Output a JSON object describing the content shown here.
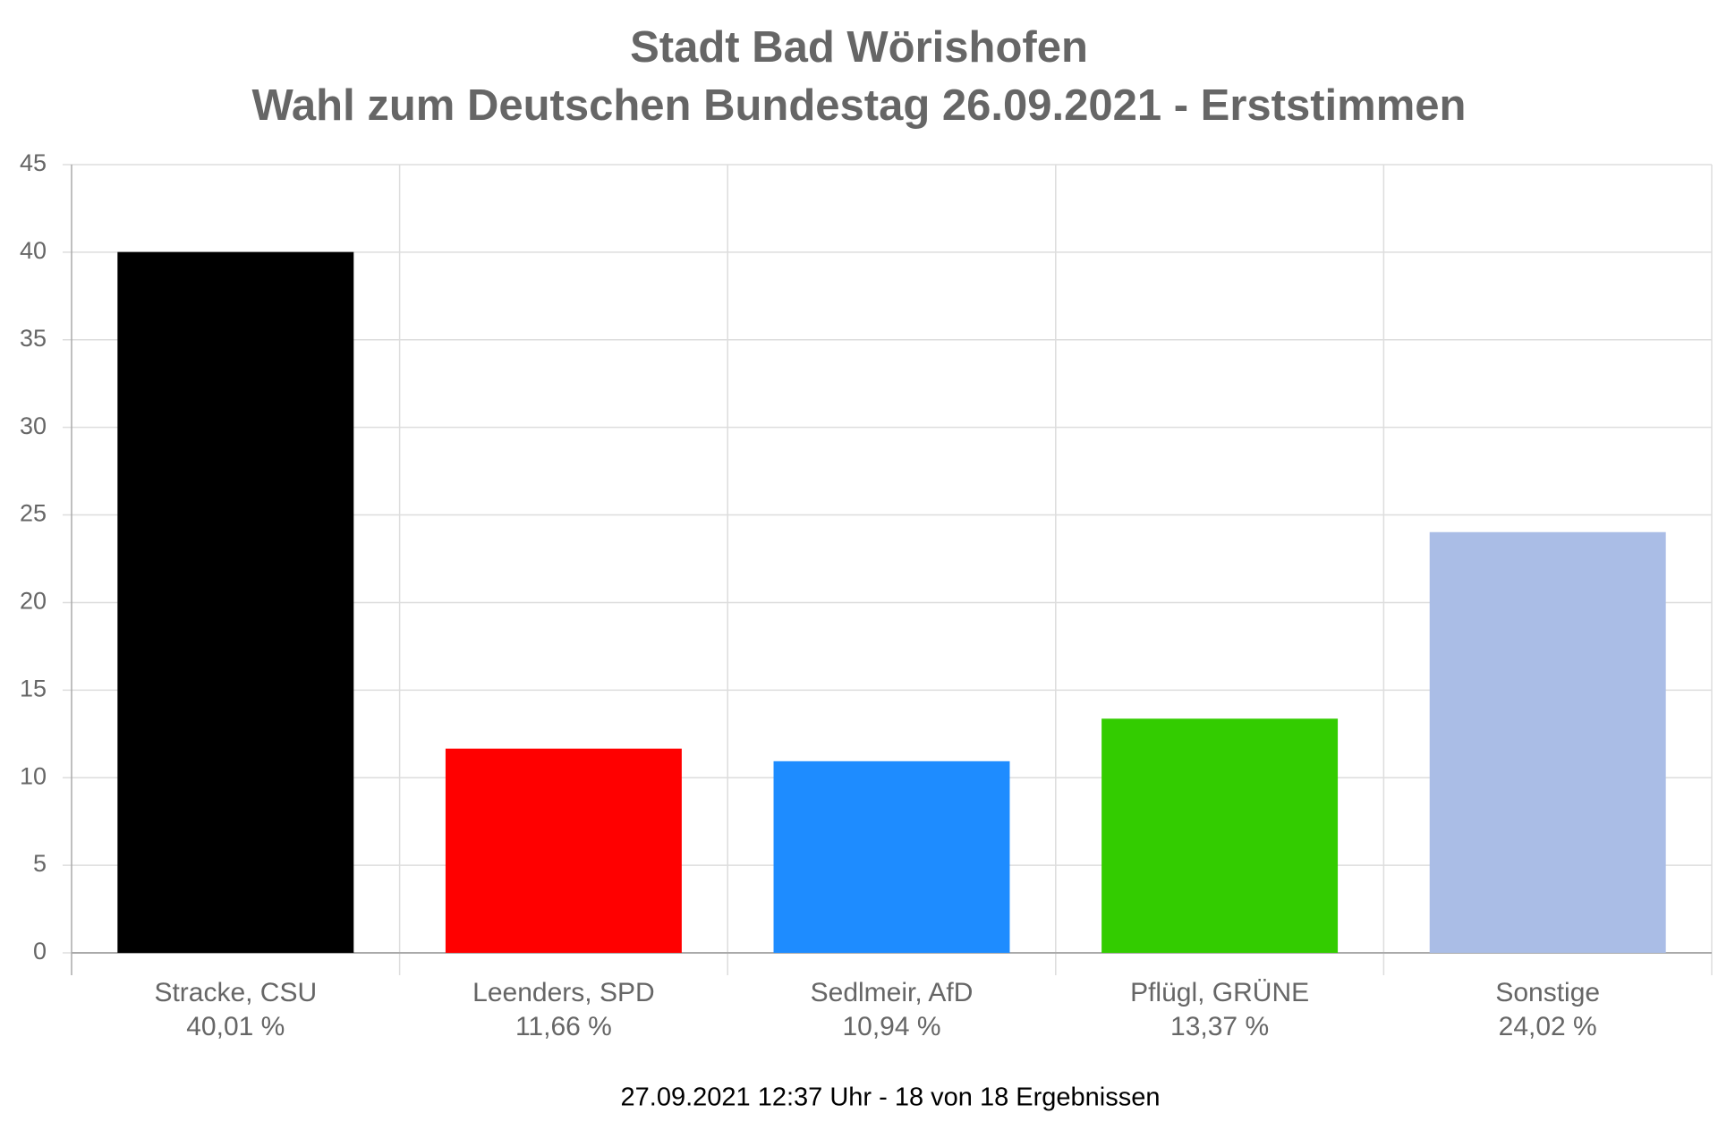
{
  "chart_data": {
    "type": "bar",
    "title": "Stadt Bad Wörishofen",
    "subtitle": "Wahl zum Deutschen Bundestag 26.09.2021  - Erststimmen",
    "categories": [
      "Stracke, CSU",
      "Leenders, SPD",
      "Sedlmeir, AfD",
      "Pflügl, GRÜNE",
      "Sonstige"
    ],
    "values": [
      40.01,
      11.66,
      10.94,
      13.37,
      24.02
    ],
    "value_labels": [
      "40,01 %",
      "11,66 %",
      "10,94 %",
      "13,37 %",
      "24,02 %"
    ],
    "colors": [
      "#000000",
      "#ff0000",
      "#1e8cff",
      "#33cc00",
      "#aabde6"
    ],
    "ylim": [
      0,
      45
    ],
    "yticks": [
      0,
      5,
      10,
      15,
      20,
      25,
      30,
      35,
      40,
      45
    ],
    "grid": true,
    "footnote": "27.09.2021 12:37 Uhr - 18 von 18 Ergebnissen"
  }
}
